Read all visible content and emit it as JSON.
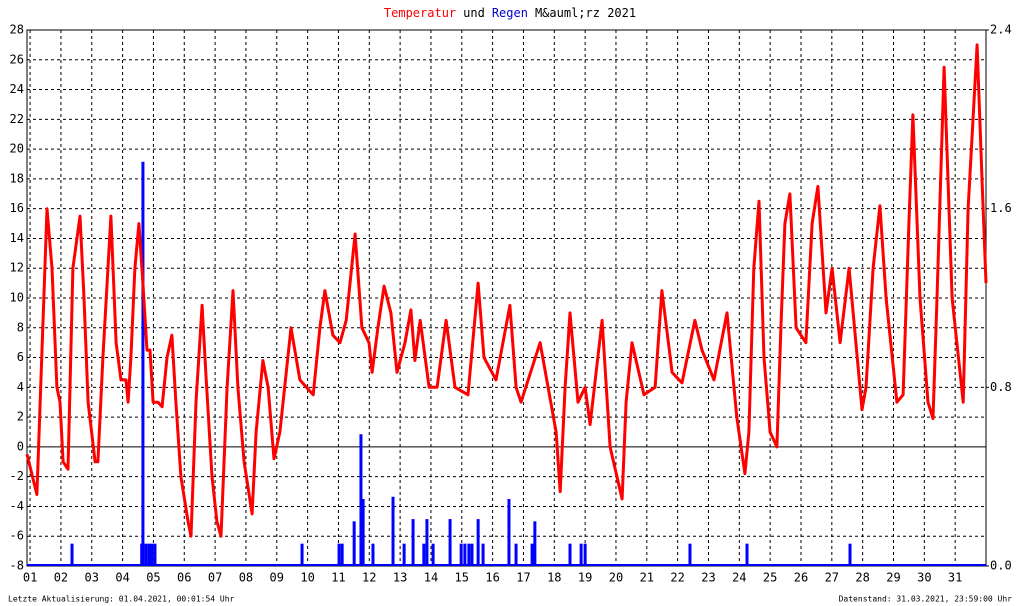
{
  "chart_data": {
    "type": "line_bar",
    "title_parts": [
      {
        "text": "Temperatur",
        "color": "#ff0000"
      },
      {
        "text": "und",
        "color": "#000000"
      },
      {
        "text": "Regen",
        "color": "#0000cc"
      },
      {
        "text": "M&auml;rz 2021",
        "color": "#000000"
      }
    ],
    "footer_left": "Letzte Aktualisierung: 01.04.2021, 00:01:54 Uhr",
    "footer_right": "Datenstand: 31.03.2021, 23:59:00 Uhr",
    "xlim": [
      0.9,
      32.0
    ],
    "xticks": [
      {
        "value": 1,
        "label": "01"
      },
      {
        "value": 2,
        "label": "02"
      },
      {
        "value": 3,
        "label": "03"
      },
      {
        "value": 4,
        "label": "04"
      },
      {
        "value": 5,
        "label": "05"
      },
      {
        "value": 6,
        "label": "06"
      },
      {
        "value": 7,
        "label": "07"
      },
      {
        "value": 8,
        "label": "08"
      },
      {
        "value": 9,
        "label": "09"
      },
      {
        "value": 10,
        "label": "10"
      },
      {
        "value": 11,
        "label": "11"
      },
      {
        "value": 12,
        "label": "12"
      },
      {
        "value": 13,
        "label": "13"
      },
      {
        "value": 14,
        "label": "14"
      },
      {
        "value": 15,
        "label": "15"
      },
      {
        "value": 16,
        "label": "16"
      },
      {
        "value": 17,
        "label": "17"
      },
      {
        "value": 18,
        "label": "18"
      },
      {
        "value": 19,
        "label": "19"
      },
      {
        "value": 20,
        "label": "20"
      },
      {
        "value": 21,
        "label": "21"
      },
      {
        "value": 22,
        "label": "22"
      },
      {
        "value": 23,
        "label": "23"
      },
      {
        "value": 24,
        "label": "24"
      },
      {
        "value": 25,
        "label": "25"
      },
      {
        "value": 26,
        "label": "26"
      },
      {
        "value": 27,
        "label": "27"
      },
      {
        "value": 28,
        "label": "28"
      },
      {
        "value": 29,
        "label": "29"
      },
      {
        "value": 30,
        "label": "30"
      },
      {
        "value": 31,
        "label": "31"
      }
    ],
    "ylim": [
      -8,
      28
    ],
    "yticks": [
      -8,
      -6,
      -4,
      -2,
      0,
      2,
      4,
      6,
      8,
      10,
      12,
      14,
      16,
      18,
      20,
      22,
      24,
      26,
      28
    ],
    "y2lim": [
      0,
      2.4
    ],
    "y2ticks": [
      {
        "value": 0,
        "label": "0.0"
      },
      0.8,
      1.6,
      2.4
    ],
    "grid": true,
    "series": [
      {
        "name": "Temperatur",
        "color": "#ff0000",
        "kind": "line",
        "x": [
          0.9,
          1.22,
          1.55,
          1.71,
          1.87,
          1.97,
          2.07,
          2.23,
          2.39,
          2.62,
          2.75,
          2.88,
          3.11,
          3.2,
          3.36,
          3.62,
          3.79,
          3.95,
          4.11,
          4.18,
          4.27,
          4.4,
          4.53,
          4.66,
          4.79,
          4.89,
          4.99,
          5.15,
          5.28,
          5.44,
          5.6,
          5.73,
          5.89,
          6.12,
          6.22,
          6.38,
          6.58,
          6.7,
          6.9,
          7.06,
          7.19,
          7.39,
          7.58,
          7.74,
          7.94,
          8.2,
          8.33,
          8.55,
          8.72,
          8.91,
          9.1,
          9.46,
          9.75,
          10.18,
          10.4,
          10.56,
          10.82,
          11.05,
          11.25,
          11.54,
          11.76,
          11.99,
          12.09,
          12.28,
          12.48,
          12.7,
          12.9,
          13.16,
          13.35,
          13.48,
          13.65,
          13.94,
          14.2,
          14.49,
          14.78,
          15.2,
          15.53,
          15.72,
          16.11,
          16.56,
          16.76,
          16.92,
          17.54,
          18.06,
          18.19,
          18.35,
          18.51,
          18.77,
          19.0,
          19.16,
          19.55,
          19.81,
          20.2,
          20.33,
          20.52,
          20.91,
          21.27,
          21.49,
          21.82,
          22.14,
          22.56,
          22.79,
          23.18,
          23.6,
          23.92,
          24.18,
          24.31,
          24.47,
          24.64,
          24.8,
          25.0,
          25.22,
          25.35,
          25.48,
          25.64,
          25.84,
          26.16,
          26.36,
          26.55,
          26.81,
          27.01,
          27.27,
          27.56,
          27.98,
          28.11,
          28.34,
          28.56,
          28.76,
          29.11,
          29.31,
          29.5,
          29.63,
          29.86,
          30.12,
          30.28,
          30.41,
          30.64,
          30.9,
          31.26,
          31.42,
          31.71,
          31.87,
          32.0
        ],
        "values": [
          -0.5,
          -3.2,
          16,
          12,
          4,
          3,
          -1,
          -1.5,
          12,
          15.5,
          10,
          3,
          -1,
          -1,
          6,
          15.5,
          7,
          4.5,
          4.5,
          3,
          6,
          12,
          15,
          11,
          6.5,
          6.5,
          3,
          3,
          2.7,
          6,
          7.5,
          3,
          -2,
          -5,
          -6,
          3,
          9.5,
          5,
          -2,
          -5,
          -6,
          4,
          10.5,
          4,
          -1,
          -4.5,
          1,
          5.8,
          4,
          -0.8,
          1,
          8,
          4.5,
          3.5,
          8,
          10.5,
          7.5,
          7,
          8.5,
          14.3,
          8,
          7,
          5,
          8,
          10.8,
          9,
          5,
          7,
          9.2,
          5.8,
          8.5,
          4,
          4,
          8.5,
          4,
          3.5,
          11,
          6,
          4.5,
          9.5,
          4,
          3,
          7,
          1,
          -3,
          4,
          9,
          3,
          4,
          1.5,
          8.5,
          0,
          -3.5,
          3,
          7,
          3.5,
          4,
          10.5,
          5,
          4.3,
          8.5,
          6.5,
          4.5,
          9,
          2,
          -1.8,
          1,
          12,
          16.5,
          6,
          1,
          0,
          8,
          15,
          17,
          8,
          7,
          15,
          17.5,
          9,
          12,
          7,
          12,
          2.5,
          4,
          12,
          16.2,
          10,
          3,
          3.5,
          15,
          22.3,
          10,
          3,
          1.9,
          10,
          25.5,
          10,
          3,
          16,
          27,
          18,
          11
        ]
      },
      {
        "name": "Regen",
        "color": "#0000ff",
        "kind": "bar",
        "axis": "y2",
        "x": [
          2.36,
          4.62,
          4.66,
          4.76,
          4.86,
          4.95,
          5.05,
          9.82,
          11.02,
          11.12,
          11.51,
          11.73,
          11.8,
          12.12,
          12.77,
          13.13,
          13.42,
          13.77,
          13.87,
          14.07,
          14.62,
          14.98,
          15.1,
          15.23,
          15.33,
          15.53,
          15.69,
          16.53,
          16.76,
          17.28,
          17.37,
          18.51,
          18.87,
          19.0,
          22.4,
          24.25,
          27.59
        ],
        "values": [
          0.1,
          0.1,
          1.81,
          0.1,
          0.1,
          0.1,
          0.1,
          0.1,
          0.1,
          0.1,
          0.2,
          0.59,
          0.3,
          0.1,
          0.31,
          0.1,
          0.21,
          0.1,
          0.21,
          0.1,
          0.21,
          0.1,
          0.1,
          0.1,
          0.1,
          0.21,
          0.1,
          0.3,
          0.1,
          0.1,
          0.2,
          0.1,
          0.1,
          0.1,
          0.1,
          0.1,
          0.1
        ]
      }
    ]
  }
}
